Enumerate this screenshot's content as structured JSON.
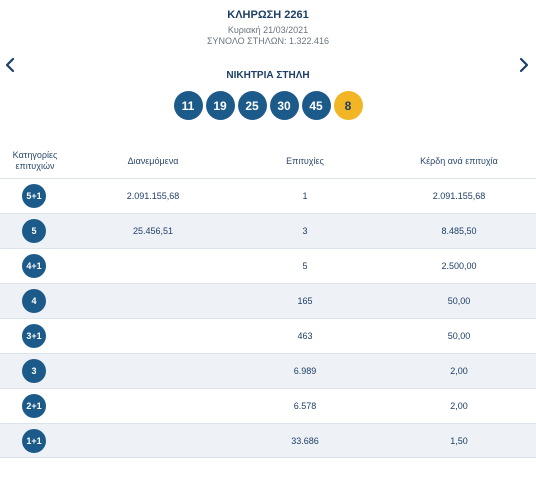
{
  "draw": {
    "title": "ΚΛΗΡΩΣΗ 2261",
    "date": "Κυριακή 21/03/2021",
    "columns": "ΣΥΝΟΛΟ ΣΤΗΛΩΝ: 1.322.416"
  },
  "winning": {
    "title": "ΝΙΚΗΤΡΙΑ ΣΤΗΛΗ",
    "numbers": [
      "11",
      "19",
      "25",
      "30",
      "45"
    ],
    "bonus": "8"
  },
  "table": {
    "headers": {
      "category": "Κατηγορίες επιτυχιών",
      "distributed": "Διανεμόμενα",
      "winners": "Επιτυχίες",
      "prize": "Κέρδη ανά επιτυχία"
    },
    "rows": [
      {
        "category": "5+1",
        "distributed": "2.091.155,68",
        "winners": "1",
        "prize": "2.091.155,68"
      },
      {
        "category": "5",
        "distributed": "25.456,51",
        "winners": "3",
        "prize": "8.485,50"
      },
      {
        "category": "4+1",
        "distributed": "",
        "winners": "5",
        "prize": "2.500,00"
      },
      {
        "category": "4",
        "distributed": "",
        "winners": "165",
        "prize": "50,00"
      },
      {
        "category": "3+1",
        "distributed": "",
        "winners": "463",
        "prize": "50,00"
      },
      {
        "category": "3",
        "distributed": "",
        "winners": "6.989",
        "prize": "2,00"
      },
      {
        "category": "2+1",
        "distributed": "",
        "winners": "6.578",
        "prize": "2,00"
      },
      {
        "category": "1+1",
        "distributed": "",
        "winners": "33.686",
        "prize": "1,50"
      }
    ]
  },
  "icons": {
    "prev": "chevron-left-icon",
    "next": "chevron-right-icon"
  },
  "colors": {
    "ball": "#1c5a8a",
    "bonus_ball": "#f2b524",
    "text": "#1d3f66",
    "row_stripe": "#eef1f5"
  }
}
